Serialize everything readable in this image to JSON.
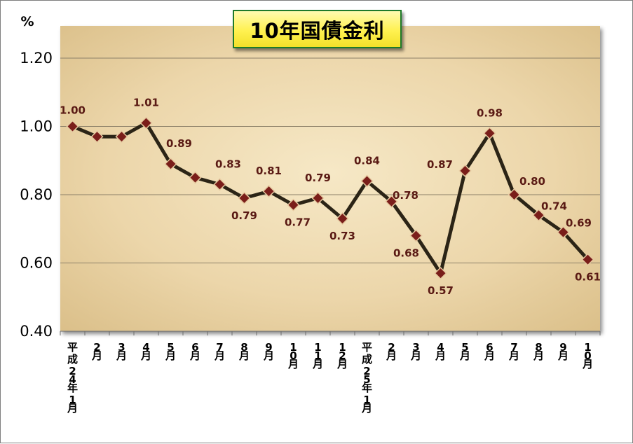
{
  "chart_data": {
    "type": "line",
    "title": "10年国債金利",
    "ylabel": "%",
    "ylim": [
      0.4,
      1.2
    ],
    "yticks": [
      "0.40",
      "0.60",
      "0.80",
      "1.00",
      "1.20"
    ],
    "grid": true,
    "legend": "none",
    "colors": {
      "line": "#2b2416",
      "marker_fill": "#7a1e1a",
      "marker_stroke": "#e6c9a0",
      "data_label": "#5a1a14",
      "plot_bg": "#ecd7ad",
      "title_bg": "#fff150",
      "title_border": "#1e7a2a"
    },
    "categories": [
      "平成24年1月",
      "2月",
      "3月",
      "4月",
      "5月",
      "6月",
      "7月",
      "8月",
      "9月",
      "10月",
      "11月",
      "12月",
      "平成25年1月",
      "2月",
      "3月",
      "4月",
      "5月",
      "6月",
      "7月",
      "8月",
      "9月",
      "10月"
    ],
    "values": [
      1.0,
      0.97,
      0.97,
      1.01,
      0.89,
      0.85,
      0.83,
      0.79,
      0.81,
      0.77,
      0.79,
      0.73,
      0.84,
      0.78,
      0.68,
      0.57,
      0.87,
      0.98,
      0.8,
      0.74,
      0.69,
      0.61
    ],
    "data_labels": [
      "1.00",
      "",
      "",
      "1.01",
      "0.89",
      "",
      "0.83",
      "0.79",
      "0.81",
      "0.77",
      "0.79",
      "0.73",
      "0.84",
      "0.78",
      "0.68",
      "0.57",
      "0.87",
      "0.98",
      "0.80",
      "0.74",
      "0.69",
      "0.61"
    ]
  }
}
